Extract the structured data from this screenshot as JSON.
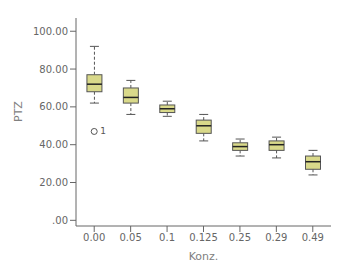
{
  "chart_data": {
    "type": "box",
    "xlabel": "Konz.",
    "ylabel": "PTZ",
    "categories": [
      "0.00",
      "0.05",
      "0.1",
      "0.125",
      "0.25",
      "0.29",
      "0.49"
    ],
    "boxes": [
      {
        "q1": 68,
        "median": 72,
        "q3": 77,
        "whisker_low": 62,
        "whisker_high": 92,
        "outliers": [
          47
        ]
      },
      {
        "q1": 62,
        "median": 65,
        "q3": 70,
        "whisker_low": 56,
        "whisker_high": 74,
        "outliers": []
      },
      {
        "q1": 57,
        "median": 59,
        "q3": 61,
        "whisker_low": 55,
        "whisker_high": 63,
        "outliers": []
      },
      {
        "q1": 46,
        "median": 50,
        "q3": 53,
        "whisker_low": 42,
        "whisker_high": 56,
        "outliers": []
      },
      {
        "q1": 37,
        "median": 39,
        "q3": 41,
        "whisker_low": 34,
        "whisker_high": 43,
        "outliers": []
      },
      {
        "q1": 37,
        "median": 40,
        "q3": 42,
        "whisker_low": 33,
        "whisker_high": 44,
        "outliers": []
      },
      {
        "q1": 27,
        "median": 31,
        "q3": 34,
        "whisker_low": 24,
        "whisker_high": 37,
        "outliers": []
      }
    ],
    "outlier_label": "1",
    "color": "#d9d98a",
    "ylim": [
      -3,
      107
    ],
    "yticks": [
      {
        "value": 0,
        "label": ".00"
      },
      {
        "value": 20,
        "label": "20.00"
      },
      {
        "value": 40,
        "label": "40.00"
      },
      {
        "value": 60,
        "label": "60.00"
      },
      {
        "value": 80,
        "label": "80.00"
      },
      {
        "value": 100,
        "label": "100.00"
      }
    ],
    "grid": false
  }
}
